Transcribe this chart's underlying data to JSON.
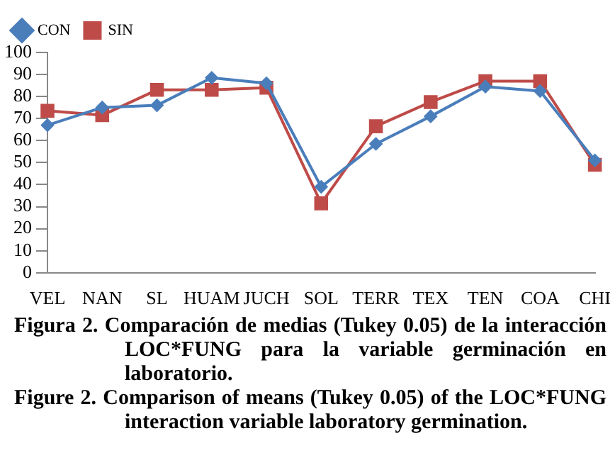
{
  "chart_data": {
    "type": "line",
    "categories": [
      "VEL",
      "NAN",
      "SL",
      "HUAM",
      "JUCH",
      "SOL",
      "TERR",
      "TEX",
      "TEN",
      "COA",
      "CHI"
    ],
    "series": [
      {
        "name": "CON",
        "color": "#4a7ebb",
        "marker": "diamond",
        "values": [
          67,
          75,
          76,
          88.5,
          86,
          39,
          58.5,
          71,
          84.5,
          82.5,
          51
        ]
      },
      {
        "name": "SIN",
        "color": "#be4b48",
        "marker": "square",
        "values": [
          73.5,
          71.5,
          83,
          83,
          84,
          31.5,
          66.5,
          77.5,
          87,
          87,
          49
        ]
      }
    ],
    "ylim": [
      0,
      100
    ],
    "yticks": [
      0,
      10,
      20,
      30,
      40,
      50,
      60,
      70,
      80,
      90,
      100
    ],
    "grid": false,
    "legend": "top left",
    "annotations": [
      "Figura 2. Comparación de medias (Tukey 0.05) de la interacción LOC*FUNG para la variable germinación en laboratorio.",
      "Figure 2. Comparison of means (Tukey 0.05) of the LOC*FUNG interaction variable laboratory germination."
    ]
  }
}
